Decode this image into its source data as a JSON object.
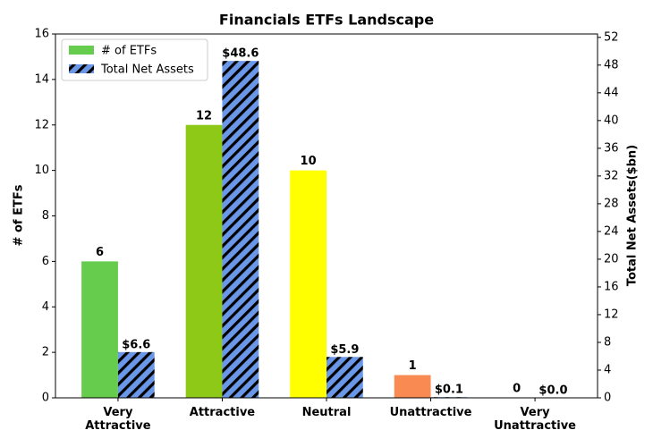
{
  "chart_data": {
    "type": "bar",
    "title": "Financials ETFs Landscape",
    "categories": [
      "Very\nAttractive",
      "Attractive",
      "Neutral",
      "Unattractive",
      "Very\nUnattractive"
    ],
    "ylabel": "# of ETFs",
    "y2label": "Total Net Assets($bn)",
    "ylim": [
      0,
      16
    ],
    "yticks": [
      0,
      2,
      4,
      6,
      8,
      10,
      12,
      14,
      16
    ],
    "y2lim": [
      0,
      52.49
    ],
    "y2ticks": [
      0,
      4,
      8,
      12,
      16,
      20,
      24,
      28,
      32,
      36,
      40,
      44,
      48,
      52
    ],
    "legend": "upper left",
    "series": [
      {
        "name": "# of ETFs",
        "color": "#66cc4d",
        "colors": [
          "#66cc4d",
          "#8fc918",
          "#ffff00",
          "#f98b52",
          "#e8453c"
        ],
        "values": [
          6,
          12,
          10,
          1,
          0
        ]
      },
      {
        "name": "Total Net Assets",
        "color": "#6a97e8",
        "hatch": "#000000",
        "axis": "y2",
        "values": [
          6.6,
          48.6,
          5.9,
          0.1,
          0.0
        ],
        "value_labels": [
          "$6.6",
          "$48.6",
          "$5.9",
          "$0.1",
          "$0.0"
        ]
      }
    ]
  }
}
